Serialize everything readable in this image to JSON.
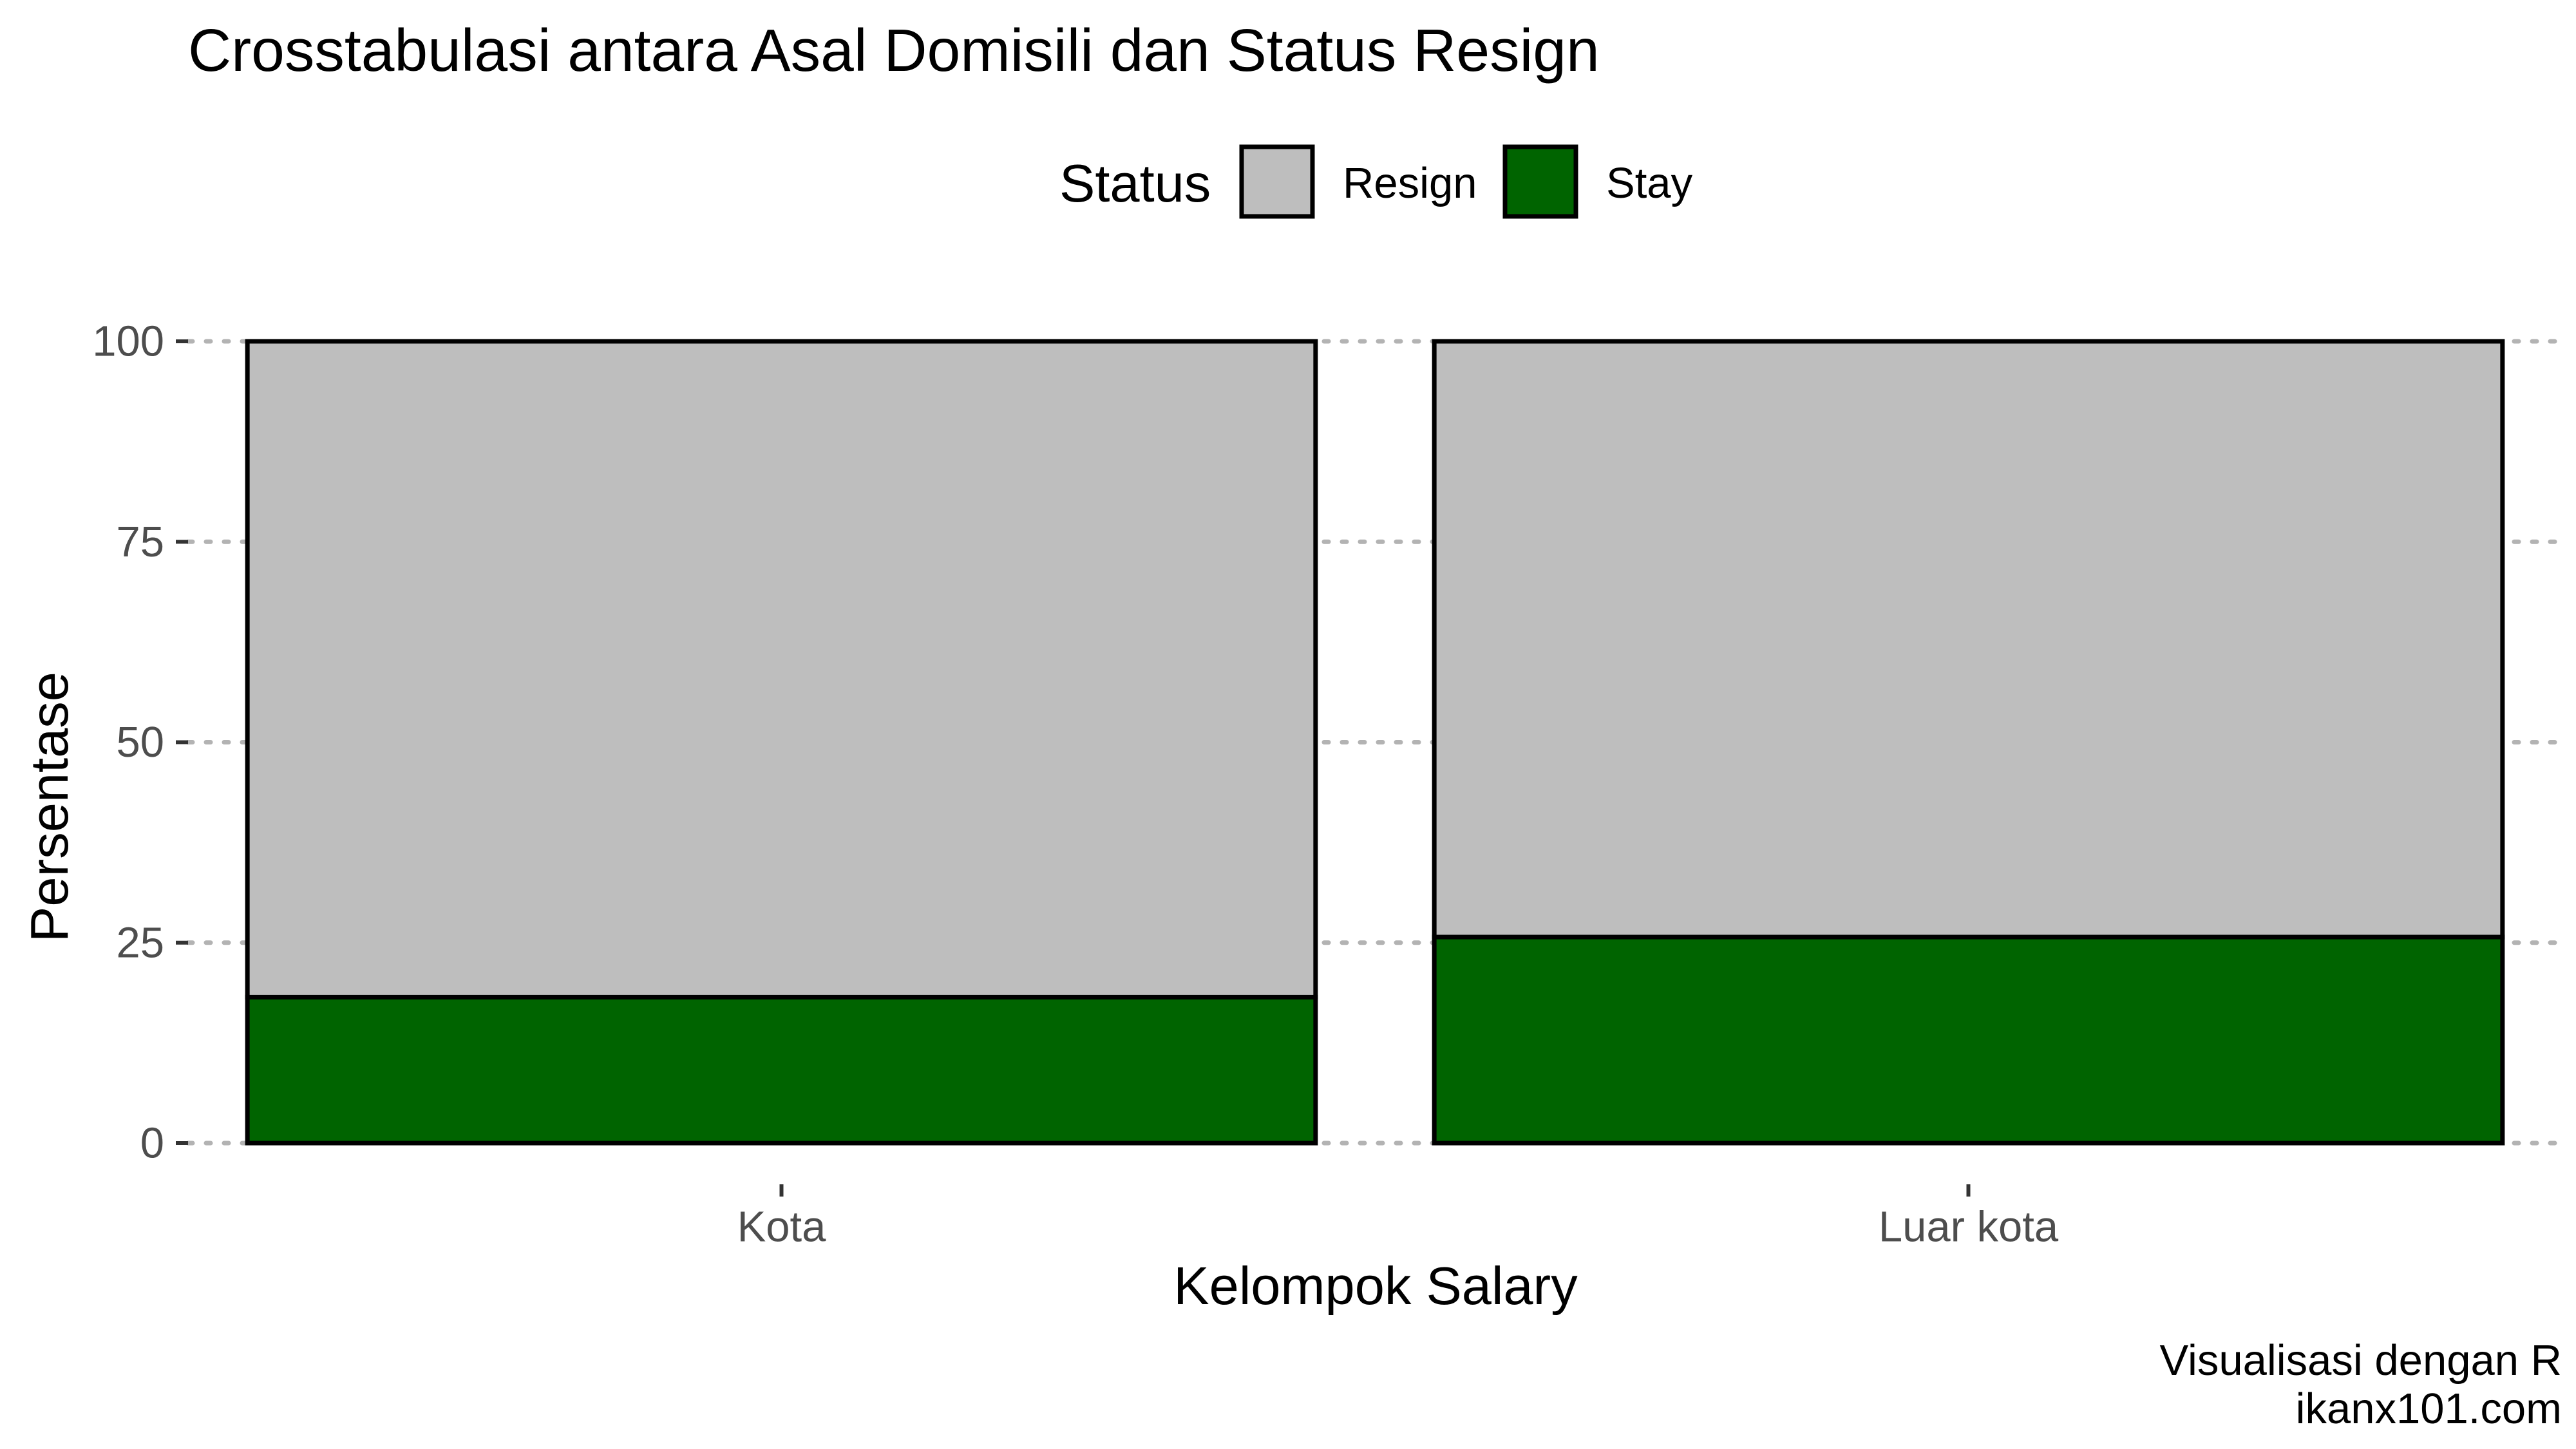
{
  "chart_data": {
    "type": "bar",
    "stacked": true,
    "title": "Crosstabulasi antara Asal Domisili dan Status Resign",
    "xlabel": "Kelompok Salary",
    "ylabel": "Persentase",
    "categories": [
      "Kota",
      "Luar kota"
    ],
    "series": [
      {
        "name": "Stay",
        "values": [
          18.2,
          25.7
        ],
        "color": "#006400"
      },
      {
        "name": "Resign",
        "values": [
          81.8,
          74.3
        ],
        "color": "#BEBEBE"
      }
    ],
    "ylim": [
      0,
      100
    ],
    "yticks": [
      "0",
      "25",
      "50",
      "75",
      "100"
    ],
    "legend": {
      "title": "Status",
      "position": "top",
      "entries": [
        {
          "label": "Resign",
          "color": "#BEBEBE"
        },
        {
          "label": "Stay",
          "color": "#006400"
        }
      ]
    },
    "grid": "horizontal-dotted",
    "caption": [
      "Visualisasi dengan R",
      "ikanx101.com"
    ]
  }
}
